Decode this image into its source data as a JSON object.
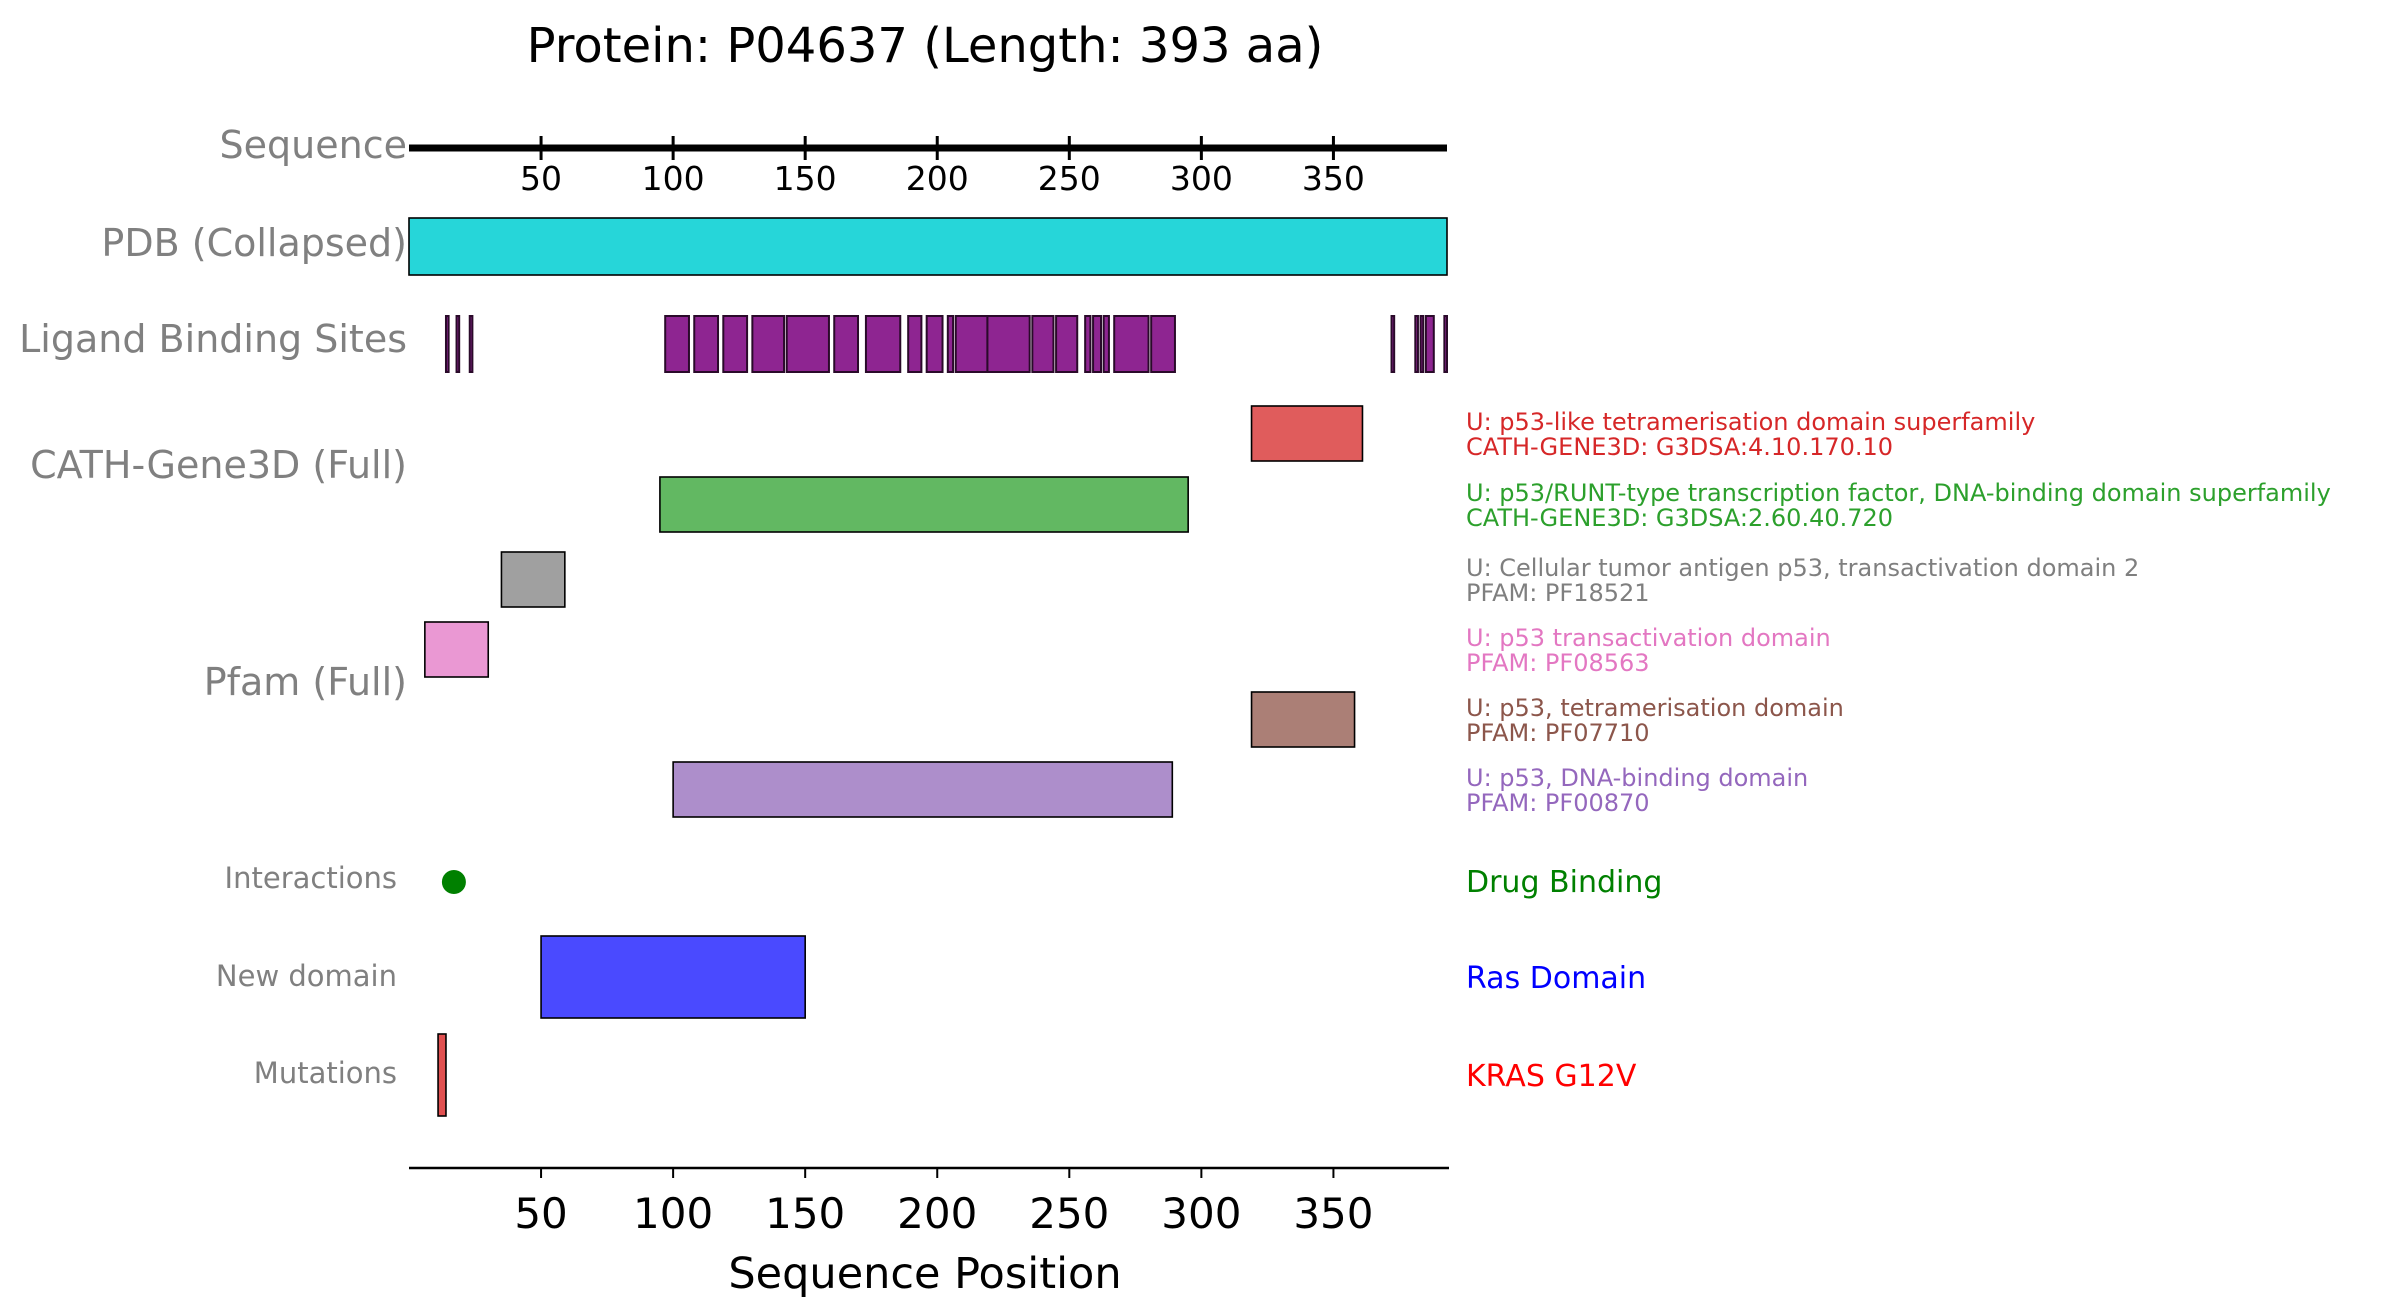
{
  "chart_data": {
    "type": "bar",
    "title": "Protein: P04637 (Length: 393 aa)",
    "xlabel": "Sequence Position",
    "xlim": [
      0,
      393
    ],
    "top_ticks": [
      50,
      100,
      150,
      200,
      250,
      300,
      350
    ],
    "bottom_ticks": [
      50,
      100,
      150,
      200,
      250,
      300,
      350
    ],
    "tracks": [
      {
        "key": "sequence",
        "label": "Sequence",
        "kind": "axis"
      },
      {
        "key": "pdb",
        "label": "PDB (Collapsed)",
        "kind": "bars",
        "color": "#26d6d9",
        "features": [
          {
            "start": 1,
            "end": 393
          }
        ]
      },
      {
        "key": "ligand",
        "label": "Ligand Binding Sites",
        "kind": "segments",
        "color": "#8e2591",
        "sites": [
          [
            14,
            15
          ],
          [
            18,
            19
          ],
          [
            23,
            24
          ],
          [
            97,
            106
          ],
          [
            108,
            117
          ],
          [
            119,
            128
          ],
          [
            130,
            142
          ],
          [
            143,
            159
          ],
          [
            161,
            170
          ],
          [
            173,
            186
          ],
          [
            189,
            194
          ],
          [
            196,
            202
          ],
          [
            204,
            206
          ],
          [
            207,
            219
          ],
          [
            219,
            235
          ],
          [
            236,
            244
          ],
          [
            245,
            253
          ],
          [
            256,
            258
          ],
          [
            259,
            262
          ],
          [
            263,
            265
          ],
          [
            267,
            280
          ],
          [
            281,
            290
          ],
          [
            372,
            373
          ],
          [
            381,
            382
          ],
          [
            383,
            384
          ],
          [
            385,
            388
          ],
          [
            392,
            393
          ]
        ]
      },
      {
        "key": "cath",
        "label": "CATH-Gene3D (Full)",
        "kind": "domains",
        "features": [
          {
            "start": 319,
            "end": 361,
            "color": "#e05c5c",
            "text_color": "#d62728",
            "name": "U: p53-like tetramerisation domain superfamily",
            "id": "CATH-GENE3D: G3DSA:4.10.170.10"
          },
          {
            "start": 95,
            "end": 295,
            "color": "#62b862",
            "text_color": "#2ca02c",
            "name": "U: p53/RUNT-type transcription factor, DNA-binding domain superfamily",
            "id": "CATH-GENE3D: G3DSA:2.60.40.720"
          }
        ]
      },
      {
        "key": "pfam",
        "label": "Pfam (Full)",
        "kind": "domains",
        "features": [
          {
            "start": 35,
            "end": 59,
            "color": "#a0a0a0",
            "text_color": "#7f7f7f",
            "name": "U: Cellular tumor antigen p53, transactivation domain 2",
            "id": "PFAM: PF18521"
          },
          {
            "start": 6,
            "end": 30,
            "color": "#ea98d3",
            "text_color": "#e377c2",
            "name": "U: p53 transactivation domain",
            "id": "PFAM: PF08563"
          },
          {
            "start": 319,
            "end": 358,
            "color": "#ab7f76",
            "text_color": "#8c564b",
            "name": "U: p53, tetramerisation domain",
            "id": "PFAM: PF07710"
          },
          {
            "start": 100,
            "end": 289,
            "color": "#ad8ecb",
            "text_color": "#9467bd",
            "name": "U: p53, DNA-binding domain",
            "id": "PFAM: PF00870"
          }
        ]
      },
      {
        "key": "interactions",
        "label": "Interactions",
        "kind": "points",
        "color": "#008000",
        "points": [
          {
            "pos": 17,
            "name": "Drug Binding"
          }
        ]
      },
      {
        "key": "newdomain",
        "label": "New domain",
        "kind": "bars",
        "color": "#4a4aff",
        "text_color": "#0000ff",
        "features": [
          {
            "start": 50,
            "end": 150,
            "name": "Ras Domain"
          }
        ]
      },
      {
        "key": "mutations",
        "label": "Mutations",
        "kind": "bars",
        "color": "#e05050",
        "text_color": "#ff0000",
        "features": [
          {
            "start": 11,
            "end": 14,
            "name": "KRAS G12V"
          }
        ]
      }
    ]
  }
}
